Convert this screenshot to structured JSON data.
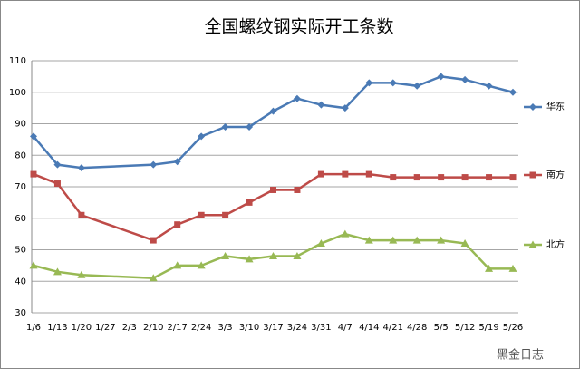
{
  "chart_data": {
    "type": "line",
    "title": "全国螺纹钢实际开工条数",
    "categories": [
      "1/6",
      "1/13",
      "1/20",
      "1/27",
      "2/3",
      "2/10",
      "2/17",
      "2/24",
      "3/3",
      "3/10",
      "3/17",
      "3/24",
      "3/31",
      "4/7",
      "4/14",
      "4/21",
      "4/28",
      "5/5",
      "5/12",
      "5/19",
      "5/26"
    ],
    "series": [
      {
        "name": "华东",
        "color": "#4a7ab5",
        "marker": "diamond",
        "values": [
          86,
          77,
          76,
          null,
          null,
          77,
          78,
          86,
          89,
          89,
          94,
          98,
          96,
          95,
          103,
          103,
          102,
          105,
          104,
          102,
          100
        ]
      },
      {
        "name": "南方",
        "color": "#be4b48",
        "marker": "square",
        "values": [
          74,
          71,
          61,
          null,
          null,
          53,
          58,
          61,
          61,
          65,
          69,
          69,
          74,
          74,
          74,
          73,
          73,
          73,
          73,
          73,
          73
        ]
      },
      {
        "name": "北方",
        "color": "#98b954",
        "marker": "triangle",
        "values": [
          45,
          43,
          42,
          null,
          null,
          41,
          45,
          45,
          48,
          47,
          48,
          48,
          52,
          55,
          53,
          53,
          53,
          53,
          52,
          44,
          44
        ]
      }
    ],
    "ylim": [
      30,
      110
    ],
    "yticks": [
      30,
      40,
      50,
      60,
      70,
      80,
      90,
      100,
      110
    ],
    "grid": true,
    "connect_gaps": true,
    "legend": "right",
    "watermark": "黑金日志"
  }
}
